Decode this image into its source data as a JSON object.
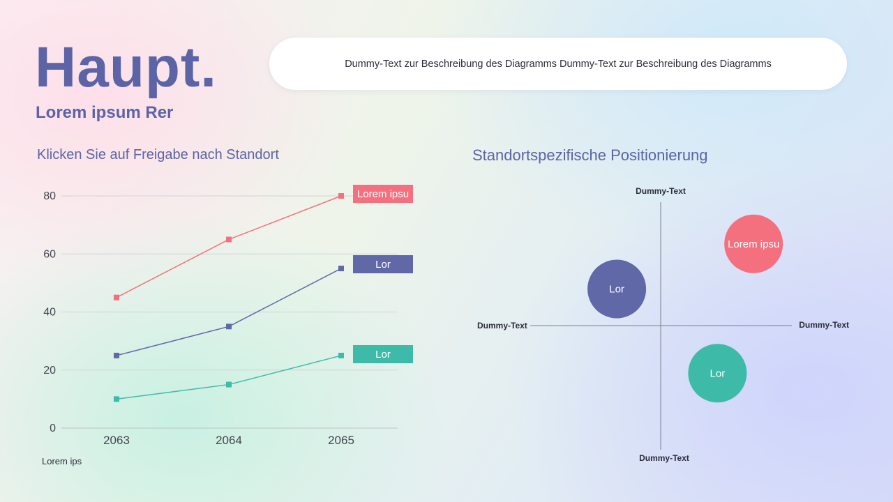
{
  "header": {
    "title": "Haupt.",
    "subtitle": "Lorem ipsum Rer",
    "description": "Dummy-Text zur Beschreibung des Diagramms Dummy-Text zur Beschreibung des Diagramms"
  },
  "colors": {
    "title": "#5c64a6",
    "red": "#f5707f",
    "blue": "#6168a8",
    "teal": "#3dbba8"
  },
  "line_section": {
    "title": "Klicken Sie auf Freigabe nach Standort",
    "footnote": "Lorem ips"
  },
  "pos_section": {
    "title": "Standortspezifische Positionierung"
  },
  "chart_data": [
    {
      "type": "line",
      "title": "Klicken Sie auf Freigabe nach Standort",
      "categories": [
        "2063",
        "2064",
        "2065"
      ],
      "series": [
        {
          "name": "Lorem ipsu",
          "color": "#f5707f",
          "values": [
            45,
            65,
            80
          ]
        },
        {
          "name": "Lor",
          "color": "#6168a8",
          "values": [
            25,
            35,
            55
          ]
        },
        {
          "name": "Lor",
          "color": "#3dbba8",
          "values": [
            10,
            15,
            25
          ]
        }
      ],
      "yticks": [
        0,
        20,
        40,
        60,
        80
      ],
      "ylim": [
        0,
        80
      ],
      "grid": true,
      "xlabel": "",
      "ylabel": ""
    },
    {
      "type": "scatter",
      "title": "Standortspezifische Positionierung",
      "axis_labels": {
        "top": "Dummy-Text",
        "bottom": "Dummy-Text",
        "left": "Dummy-Text",
        "right": "Dummy-Text"
      },
      "xlim": [
        -1,
        1
      ],
      "ylim": [
        -1,
        1
      ],
      "points": [
        {
          "label": "Lorem ipsu",
          "x": 0.72,
          "y": 0.67,
          "color": "#f5707f"
        },
        {
          "label": "Lor",
          "x": -0.34,
          "y": 0.3,
          "color": "#6168a8"
        },
        {
          "label": "Lor",
          "x": 0.44,
          "y": -0.39,
          "color": "#3dbba8"
        }
      ]
    }
  ]
}
